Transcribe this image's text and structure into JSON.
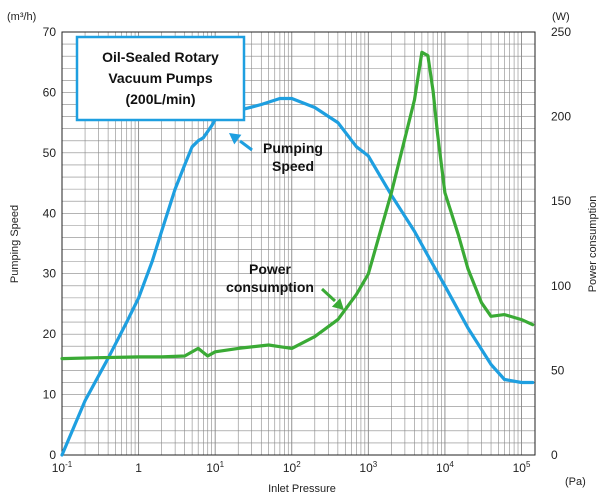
{
  "chart_data": {
    "type": "line",
    "title": "Oil-Sealed Rotary\nVacuum Pumps\n(200L/min)",
    "xlabel": "Inlet Pressure",
    "x_unit": "(Pa)",
    "x_scale": "log",
    "xlim": [
      0.1,
      150000
    ],
    "x_ticks": [
      {
        "value": 0.1,
        "base": "10",
        "exp": "-1"
      },
      {
        "value": 1,
        "base": "1",
        "exp": ""
      },
      {
        "value": 10,
        "base": "10",
        "exp": "1"
      },
      {
        "value": 100,
        "base": "10",
        "exp": "2"
      },
      {
        "value": 1000,
        "base": "10",
        "exp": "3"
      },
      {
        "value": 10000,
        "base": "10",
        "exp": "4"
      },
      {
        "value": 100000,
        "base": "10",
        "exp": "5"
      }
    ],
    "ylabel": "Pumping Speed",
    "y_unit": "(m³/h)",
    "ylim": [
      0,
      70
    ],
    "y_ticks": [
      0,
      10,
      20,
      30,
      40,
      50,
      60,
      70
    ],
    "y2label": "Power consumption",
    "y2_unit": "(W)",
    "y2lim": [
      0,
      250
    ],
    "y2_ticks": [
      0,
      50,
      100,
      150,
      200,
      250
    ],
    "grid": true,
    "series": [
      {
        "name": "Pumping Speed",
        "axis": "left",
        "color": "#1e9fe0",
        "points": [
          [
            0.1,
            0
          ],
          [
            0.2,
            9
          ],
          [
            0.4,
            16
          ],
          [
            0.7,
            22
          ],
          [
            1.0,
            26
          ],
          [
            1.5,
            32
          ],
          [
            2.0,
            37
          ],
          [
            3.0,
            44
          ],
          [
            4.0,
            48
          ],
          [
            5.0,
            51
          ],
          [
            6.0,
            52
          ],
          [
            7.0,
            52.5
          ],
          [
            9.0,
            54.5
          ],
          [
            10.0,
            55.5
          ],
          [
            20.0,
            57
          ],
          [
            40.0,
            58
          ],
          [
            70.0,
            59
          ],
          [
            100.0,
            59
          ],
          [
            200.0,
            57.5
          ],
          [
            400.0,
            55
          ],
          [
            700.0,
            51
          ],
          [
            1000.0,
            49.5
          ],
          [
            2000.0,
            43
          ],
          [
            4000.0,
            37
          ],
          [
            6000.0,
            33
          ],
          [
            10000.0,
            28
          ],
          [
            20000.0,
            21
          ],
          [
            40000.0,
            15
          ],
          [
            60000.0,
            12.5
          ],
          [
            100000.0,
            12
          ],
          [
            140000.0,
            12
          ]
        ]
      },
      {
        "name": "Power consumption",
        "axis": "right",
        "color": "#3aaa35",
        "points": [
          [
            0.1,
            57
          ],
          [
            0.3,
            57.5
          ],
          [
            1.0,
            58
          ],
          [
            2.0,
            58
          ],
          [
            4.0,
            58.5
          ],
          [
            6.0,
            63
          ],
          [
            8.0,
            58.5
          ],
          [
            10.0,
            61
          ],
          [
            20.0,
            63
          ],
          [
            50.0,
            65
          ],
          [
            70.0,
            64
          ],
          [
            100.0,
            63
          ],
          [
            200.0,
            70
          ],
          [
            400.0,
            80
          ],
          [
            700.0,
            95
          ],
          [
            1000.0,
            107
          ],
          [
            2000.0,
            155
          ],
          [
            4000.0,
            210
          ],
          [
            5000.0,
            238
          ],
          [
            6000.0,
            236
          ],
          [
            7000.0,
            215
          ],
          [
            8000.0,
            190
          ],
          [
            10000.0,
            155
          ],
          [
            15000.0,
            130
          ],
          [
            20000.0,
            110
          ],
          [
            30000.0,
            90
          ],
          [
            40000.0,
            82
          ],
          [
            60000.0,
            83
          ],
          [
            100000.0,
            80
          ],
          [
            140000.0,
            77
          ]
        ]
      }
    ],
    "annotations": [
      {
        "text": "Pumping\nSpeed",
        "series": "Pumping Speed"
      },
      {
        "text": "Power\nconsumption",
        "series": "Power consumption"
      }
    ]
  }
}
